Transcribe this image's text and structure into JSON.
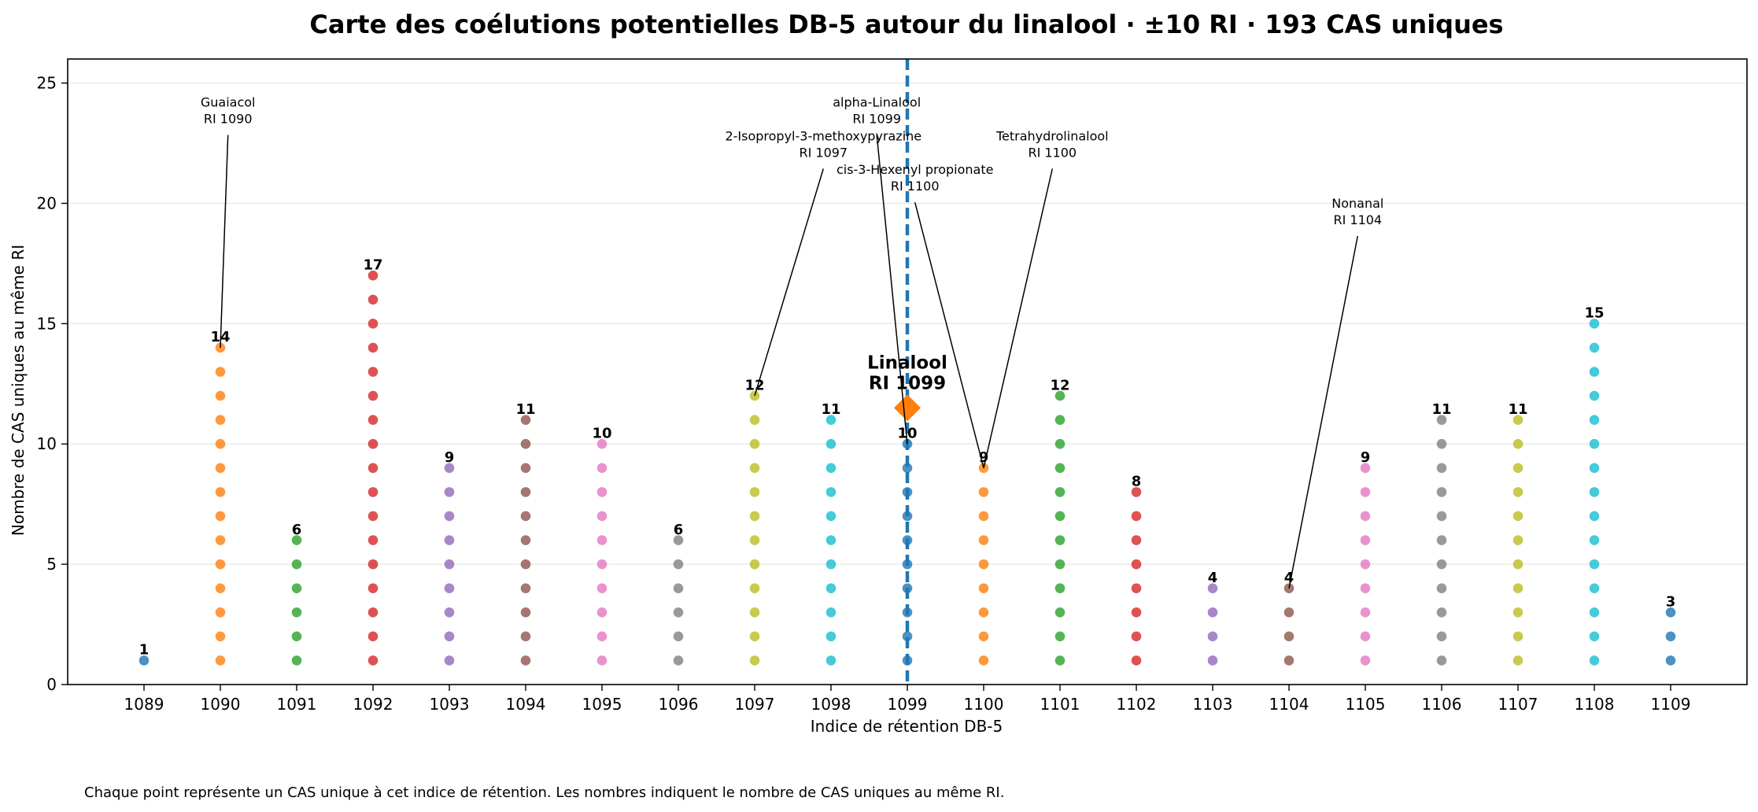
{
  "chart_data": {
    "type": "scatter",
    "title": "Carte des coélutions potentielles DB-5 autour du linalool · ±10 RI · 193 CAS uniques",
    "xlabel": "Indice de rétention DB-5",
    "ylabel": "Nombre de CAS uniques au même RI",
    "xlim": [
      1088,
      1110
    ],
    "ylim": [
      0,
      26
    ],
    "x_ticks": [
      1089,
      1090,
      1091,
      1092,
      1093,
      1094,
      1095,
      1096,
      1097,
      1098,
      1099,
      1100,
      1101,
      1102,
      1103,
      1104,
      1105,
      1106,
      1107,
      1108,
      1109
    ],
    "y_ticks": [
      0,
      5,
      10,
      15,
      20,
      25
    ],
    "grid": "horizontal",
    "columns": [
      {
        "ri": 1089,
        "count": 1,
        "color": "#1f77b4"
      },
      {
        "ri": 1090,
        "count": 14,
        "color": "#ff7f0e"
      },
      {
        "ri": 1091,
        "count": 6,
        "color": "#2ca02c"
      },
      {
        "ri": 1092,
        "count": 17,
        "color": "#d62728"
      },
      {
        "ri": 1093,
        "count": 9,
        "color": "#9467bd"
      },
      {
        "ri": 1094,
        "count": 11,
        "color": "#8c564b"
      },
      {
        "ri": 1095,
        "count": 10,
        "color": "#e377c2"
      },
      {
        "ri": 1096,
        "count": 6,
        "color": "#7f7f7f"
      },
      {
        "ri": 1097,
        "count": 12,
        "color": "#bcbd22"
      },
      {
        "ri": 1098,
        "count": 11,
        "color": "#17becf"
      },
      {
        "ri": 1099,
        "count": 10,
        "color": "#1f77b4"
      },
      {
        "ri": 1100,
        "count": 9,
        "color": "#ff7f0e"
      },
      {
        "ri": 1101,
        "count": 12,
        "color": "#2ca02c"
      },
      {
        "ri": 1102,
        "count": 8,
        "color": "#d62728"
      },
      {
        "ri": 1103,
        "count": 4,
        "color": "#9467bd"
      },
      {
        "ri": 1104,
        "count": 4,
        "color": "#8c564b"
      },
      {
        "ri": 1105,
        "count": 9,
        "color": "#e377c2"
      },
      {
        "ri": 1106,
        "count": 11,
        "color": "#7f7f7f"
      },
      {
        "ri": 1107,
        "count": 11,
        "color": "#bcbd22"
      },
      {
        "ri": 1108,
        "count": 15,
        "color": "#17becf"
      },
      {
        "ri": 1109,
        "count": 3,
        "color": "#1f77b4"
      }
    ],
    "linalool": {
      "ri": 1099,
      "y": 11.5,
      "line_color": "#1f77b4",
      "marker_color": "#ff7f0e",
      "label_line1": "Linalool",
      "label_line2": "RI 1099"
    },
    "annotations": [
      {
        "name": "Guaiacol",
        "ri_label": "RI 1090",
        "text_x": 1090.1,
        "text_y": 23.3,
        "point_x": 1090,
        "point_y": 14
      },
      {
        "name": "alpha-Linalool",
        "ri_label": "RI 1099",
        "text_x": 1098.6,
        "text_y": 23.3,
        "point_x": 1099,
        "point_y": 10
      },
      {
        "name": "2-Isopropyl-3-methoxypyrazine",
        "ri_label": "RI 1097",
        "text_x": 1097.9,
        "text_y": 21.9,
        "point_x": 1097,
        "point_y": 12
      },
      {
        "name": "Tetrahydrolinalool",
        "ri_label": "RI 1100",
        "text_x": 1100.9,
        "text_y": 21.9,
        "point_x": 1100,
        "point_y": 9
      },
      {
        "name": "cis-3-Hexenyl propionate",
        "ri_label": "RI 1100",
        "text_x": 1099.1,
        "text_y": 20.5,
        "point_x": 1100,
        "point_y": 9
      },
      {
        "name": "Nonanal",
        "ri_label": "RI 1104",
        "text_x": 1104.9,
        "text_y": 19.1,
        "point_x": 1104,
        "point_y": 4
      }
    ],
    "footnote": "Chaque point représente un CAS unique à cet indice de rétention. Les nombres indiquent le nombre de CAS uniques au même RI."
  }
}
